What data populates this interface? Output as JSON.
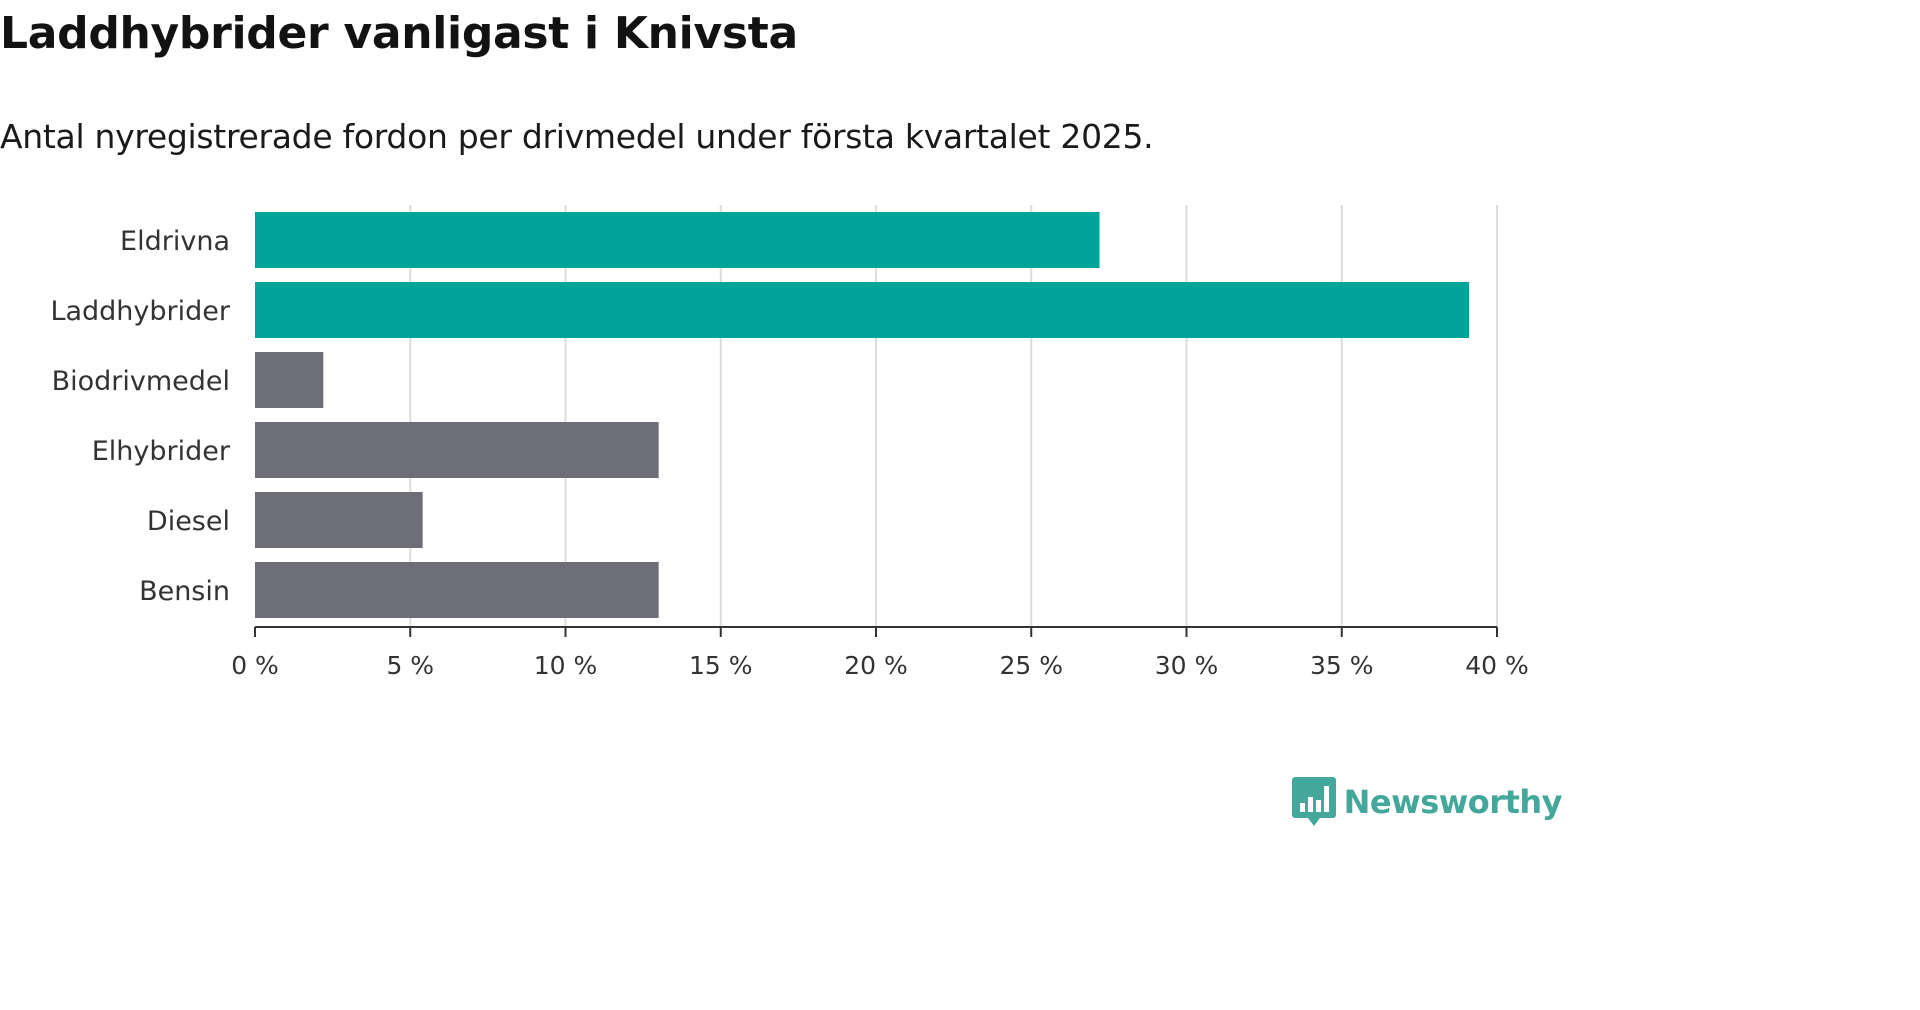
{
  "chart_data": {
    "type": "bar",
    "orientation": "horizontal",
    "title": "Laddhybrider vanligast i Knivsta",
    "subtitle": "Antal nyregistrerade fordon per drivmedel under första kvartalet 2025.",
    "categories": [
      "Eldrivna",
      "Laddhybrider",
      "Biodrivmedel",
      "Elhybrider",
      "Diesel",
      "Bensin"
    ],
    "values": [
      27.2,
      39.1,
      2.2,
      13.0,
      5.4,
      13.0
    ],
    "bar_colors": [
      "#00a499",
      "#00a499",
      "#6e6e78",
      "#6e6e78",
      "#6e6e78",
      "#6e6e78"
    ],
    "xlim": [
      0,
      40
    ],
    "xticks": [
      0,
      5,
      10,
      15,
      20,
      25,
      30,
      35,
      40
    ],
    "xtick_labels": [
      "0 %",
      "5 %",
      "10 %",
      "15 %",
      "20 %",
      "25 %",
      "30 %",
      "35 %",
      "40 %"
    ],
    "xlabel": "",
    "ylabel": "",
    "grid": "vertical",
    "legend": "none"
  },
  "branding": {
    "name": "Newsworthy",
    "icon": "bar-chart-speech-bubble-icon",
    "color": "#44a79c"
  }
}
